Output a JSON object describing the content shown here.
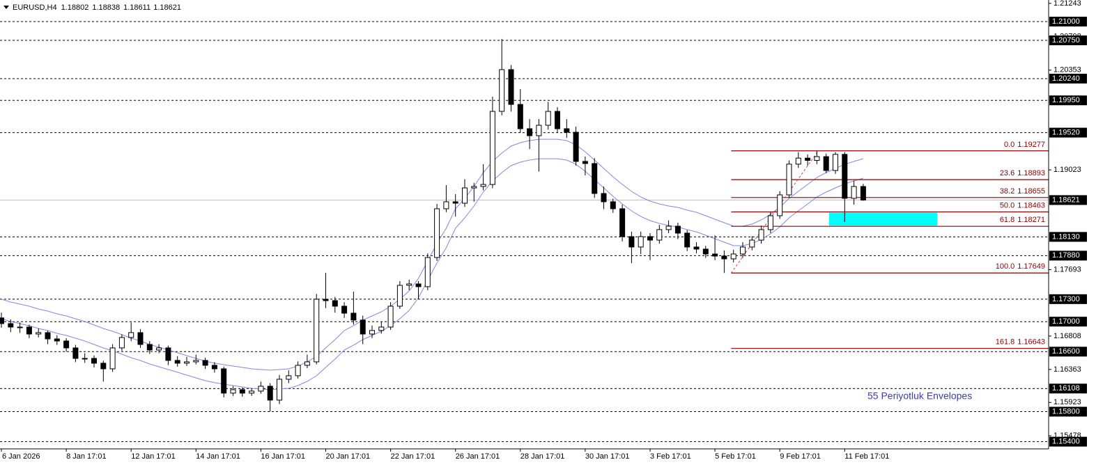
{
  "chart_data": {
    "type": "candlestick",
    "symbol": "EURUSD,H4",
    "annotation": "55 Periyotluk Envelopes",
    "ylim": [
      1.15304,
      1.21288
    ],
    "yticks": [
      1.21243,
      1.20798,
      1.20353,
      1.19023,
      1.17693,
      1.16808,
      1.16363,
      1.15923,
      1.15478
    ],
    "levels": [
      {
        "value": 1.21,
        "label": "1.21000"
      },
      {
        "value": 1.2075,
        "label": "1.20750"
      },
      {
        "value": 1.2024,
        "label": "1.20240"
      },
      {
        "value": 1.1995,
        "label": "1.19950"
      },
      {
        "value": 1.1952,
        "label": "1.19520"
      },
      {
        "value": 1.1813,
        "label": "1.18130"
      },
      {
        "value": 1.1788,
        "label": "1.17880"
      },
      {
        "value": 1.173,
        "label": "1.17300"
      },
      {
        "value": 1.17,
        "label": "1.17000"
      },
      {
        "value": 1.166,
        "label": "1.16600"
      },
      1.16108,
      {
        "value": 1.158,
        "label": "1.15800"
      },
      {
        "value": 1.154,
        "label": "1.15400"
      }
    ],
    "fibonacci": {
      "color": "#8b0000",
      "zone_color": "#00ffff",
      "levels": [
        {
          "ratio": "0.0",
          "price": 1.19277
        },
        {
          "ratio": "23.6",
          "price": 1.18893
        },
        {
          "ratio": "38.2",
          "price": 1.18655
        },
        {
          "ratio": "50.0",
          "price": 1.18463
        },
        {
          "ratio": "61.8",
          "price": 1.18271
        },
        {
          "ratio": "100.0",
          "price": 1.17649
        },
        {
          "ratio": "161.8",
          "price": 1.16643
        }
      ]
    },
    "categories": [
      "6 Jan 2026",
      null,
      null,
      null,
      null,
      null,
      null,
      "8 Jan 17:01",
      null,
      null,
      null,
      null,
      null,
      null,
      "12 Jan 17:01",
      null,
      null,
      null,
      null,
      null,
      null,
      "14 Jan 17:01",
      null,
      null,
      null,
      null,
      null,
      null,
      "16 Jan 17:01",
      null,
      null,
      null,
      null,
      null,
      null,
      "20 Jan 17:01",
      null,
      null,
      null,
      null,
      null,
      null,
      "22 Jan 17:01",
      null,
      null,
      null,
      null,
      null,
      null,
      "26 Jan 17:01",
      null,
      null,
      null,
      null,
      null,
      null,
      "28 Jan 17:01",
      null,
      null,
      null,
      null,
      null,
      null,
      "30 Jan 17:01",
      null,
      null,
      null,
      null,
      null,
      null,
      "3 Feb 17:01",
      null,
      null,
      null,
      null,
      null,
      null,
      "5 Feb 17:01",
      null,
      null,
      null,
      null,
      null,
      null,
      "9 Feb 17:01",
      null,
      null,
      null,
      null,
      null,
      null,
      "11 Feb 17:01",
      null,
      null
    ],
    "ohlc": [
      [
        1.1705,
        1.1712,
        1.1692,
        1.16974
      ],
      [
        1.16974,
        1.1703,
        1.1686,
        1.16928
      ],
      [
        1.16928,
        1.1699,
        1.1685,
        1.16928
      ],
      [
        1.16928,
        1.1696,
        1.1678,
        1.16835
      ],
      [
        1.16835,
        1.1691,
        1.1679,
        1.16854
      ],
      [
        1.16854,
        1.1688,
        1.167,
        1.1677
      ],
      [
        1.1677,
        1.1682,
        1.1669,
        1.16742
      ],
      [
        1.16742,
        1.1678,
        1.166,
        1.1665
      ],
      [
        1.1665,
        1.1669,
        1.1646,
        1.1651
      ],
      [
        1.1651,
        1.1658,
        1.1645,
        1.1651
      ],
      [
        1.1651,
        1.1655,
        1.1639,
        1.16446
      ],
      [
        1.16446,
        1.1648,
        1.162,
        1.16371
      ],
      [
        1.16371,
        1.167,
        1.1633,
        1.1665
      ],
      [
        1.1665,
        1.1683,
        1.1661,
        1.16789
      ],
      [
        1.16789,
        1.1699,
        1.1674,
        1.16854
      ],
      [
        1.16854,
        1.169,
        1.1665,
        1.16696
      ],
      [
        1.16696,
        1.1674,
        1.1657,
        1.16622
      ],
      [
        1.16622,
        1.167,
        1.1658,
        1.1665
      ],
      [
        1.1665,
        1.1668,
        1.1642,
        1.16483
      ],
      [
        1.16483,
        1.1654,
        1.164,
        1.16446
      ],
      [
        1.16446,
        1.1653,
        1.1641,
        1.16464
      ],
      [
        1.16464,
        1.1656,
        1.1643,
        1.16483
      ],
      [
        1.16483,
        1.1652,
        1.1637,
        1.16418
      ],
      [
        1.16418,
        1.1646,
        1.1632,
        1.16371
      ],
      [
        1.16371,
        1.164,
        1.1599,
        1.16047
      ],
      [
        1.16047,
        1.1614,
        1.1601,
        1.16093
      ],
      [
        1.16093,
        1.1612,
        1.16,
        1.16047
      ],
      [
        1.16047,
        1.1611,
        1.1601,
        1.16074
      ],
      [
        1.16074,
        1.162,
        1.1604,
        1.16139
      ],
      [
        1.16139,
        1.1618,
        1.158,
        1.15954
      ],
      [
        1.15954,
        1.1629,
        1.159,
        1.16232
      ],
      [
        1.16232,
        1.1635,
        1.1618,
        1.16279
      ],
      [
        1.16279,
        1.1647,
        1.1624,
        1.16418
      ],
      [
        1.16418,
        1.1656,
        1.1638,
        1.16464
      ],
      [
        1.16464,
        1.1737,
        1.1643,
        1.17299
      ],
      [
        1.17299,
        1.1765,
        1.1718,
        1.1728
      ],
      [
        1.1728,
        1.1733,
        1.1712,
        1.17206
      ],
      [
        1.17206,
        1.1726,
        1.1705,
        1.17113
      ],
      [
        1.17113,
        1.174,
        1.1696,
        1.17021
      ],
      [
        1.17021,
        1.1708,
        1.167,
        1.16835
      ],
      [
        1.16835,
        1.1695,
        1.1678,
        1.16882
      ],
      [
        1.16882,
        1.17,
        1.1684,
        1.16928
      ],
      [
        1.16928,
        1.1726,
        1.1689,
        1.17206
      ],
      [
        1.17206,
        1.1754,
        1.1717,
        1.17484
      ],
      [
        1.17484,
        1.1756,
        1.1742,
        1.17503
      ],
      [
        1.17503,
        1.1754,
        1.173,
        1.17466
      ],
      [
        1.17466,
        1.1791,
        1.1742,
        1.17855
      ],
      [
        1.17855,
        1.1857,
        1.1781,
        1.18505
      ],
      [
        1.18505,
        1.1882,
        1.1846,
        1.18598
      ],
      [
        1.18598,
        1.187,
        1.184,
        1.18579
      ],
      [
        1.18579,
        1.189,
        1.1853,
        1.18783
      ],
      [
        1.18783,
        1.1885,
        1.186,
        1.18802
      ],
      [
        1.18802,
        1.191,
        1.1875,
        1.18829
      ],
      [
        1.18829,
        1.2,
        1.1878,
        1.19803
      ],
      [
        1.19803,
        1.2077,
        1.1975,
        1.2036
      ],
      [
        1.2036,
        1.2042,
        1.198,
        1.19896
      ],
      [
        1.19896,
        1.201,
        1.1952,
        1.19572
      ],
      [
        1.19572,
        1.197,
        1.193,
        1.19479
      ],
      [
        1.19479,
        1.197,
        1.19,
        1.19618
      ],
      [
        1.19618,
        1.1993,
        1.1956,
        1.19803
      ],
      [
        1.19803,
        1.1986,
        1.1952,
        1.19572
      ],
      [
        1.19572,
        1.197,
        1.1945,
        1.19525
      ],
      [
        1.19525,
        1.196,
        1.1908,
        1.19136
      ],
      [
        1.19136,
        1.192,
        1.1895,
        1.19108
      ],
      [
        1.19108,
        1.1918,
        1.1865,
        1.18709
      ],
      [
        1.18709,
        1.188,
        1.185,
        1.18598
      ],
      [
        1.18598,
        1.1864,
        1.1845,
        1.18505
      ],
      [
        1.18505,
        1.1856,
        1.1807,
        1.18134
      ],
      [
        1.18134,
        1.182,
        1.1778,
        1.17995
      ],
      [
        1.17995,
        1.182,
        1.179,
        1.18134
      ],
      [
        1.18134,
        1.1818,
        1.1782,
        1.18087
      ],
      [
        1.18087,
        1.1829,
        1.1804,
        1.18227
      ],
      [
        1.18227,
        1.1835,
        1.1818,
        1.18273
      ],
      [
        1.18273,
        1.1832,
        1.181,
        1.1818
      ],
      [
        1.1818,
        1.1822,
        1.1794,
        1.17995
      ],
      [
        1.17995,
        1.1806,
        1.1791,
        1.17967
      ],
      [
        1.17967,
        1.1801,
        1.1785,
        1.17902
      ],
      [
        1.17902,
        1.1815,
        1.1782,
        1.17874
      ],
      [
        1.17874,
        1.1795,
        1.17649,
        1.17837
      ],
      [
        1.17837,
        1.1796,
        1.1779,
        1.17902
      ],
      [
        1.17902,
        1.1806,
        1.1785,
        1.17995
      ],
      [
        1.17995,
        1.1814,
        1.1795,
        1.18087
      ],
      [
        1.18087,
        1.1828,
        1.1804,
        1.18227
      ],
      [
        1.18227,
        1.1846,
        1.1818,
        1.18412
      ],
      [
        1.18412,
        1.1874,
        1.1837,
        1.1869
      ],
      [
        1.1869,
        1.1915,
        1.1865,
        1.191
      ],
      [
        1.191,
        1.1926,
        1.1905,
        1.1918
      ],
      [
        1.1918,
        1.1923,
        1.1908,
        1.1915
      ],
      [
        1.1915,
        1.19277,
        1.191,
        1.192
      ],
      [
        1.192,
        1.1924,
        1.1898,
        1.19015
      ],
      [
        1.19015,
        1.1926,
        1.1897,
        1.1923
      ],
      [
        1.1923,
        1.1926,
        1.1833,
        1.18644
      ],
      [
        1.18644,
        1.1888,
        1.1856,
        1.18802
      ],
      [
        1.18802,
        1.18838,
        1.18611,
        1.18621
      ]
    ],
    "envelopes": [
      {
        "color": "#8585e6",
        "values": [
          1.17299,
          1.17262,
          1.17234,
          1.17206,
          1.17169,
          1.17141,
          1.17104,
          1.17076,
          1.17039,
          1.17002,
          1.16956,
          1.16909,
          1.16872,
          1.16826,
          1.16779,
          1.16742,
          1.16696,
          1.16659,
          1.16622,
          1.16585,
          1.16547,
          1.1651,
          1.16473,
          1.16446,
          1.16427,
          1.16408,
          1.1639,
          1.16371,
          1.16362,
          1.16353,
          1.16362,
          1.16371,
          1.16408,
          1.16464,
          1.16538,
          1.1665,
          1.16761,
          1.16881,
          1.16946,
          1.17021,
          1.17076,
          1.17132,
          1.17206,
          1.17299,
          1.1741,
          1.17577,
          1.17809,
          1.18041,
          1.18245,
          1.18505,
          1.18644,
          1.18802,
          1.18987,
          1.19136,
          1.19247,
          1.1934,
          1.19386,
          1.19414,
          1.19432,
          1.19432,
          1.19432,
          1.19414,
          1.19358,
          1.19265,
          1.19154,
          1.19043,
          1.18931,
          1.18829,
          1.18737,
          1.18662,
          1.18607,
          1.1857,
          1.18542,
          1.18523,
          1.18486,
          1.18458,
          1.18412,
          1.18366,
          1.18319,
          1.18273,
          1.18273,
          1.18301,
          1.18356,
          1.18431,
          1.18523,
          1.18644,
          1.18737,
          1.18829,
          1.18922,
          1.18987,
          1.19043,
          1.19098,
          1.19136,
          1.19173
        ]
      },
      {
        "color": "#8585e6",
        "values": [
          1.17039,
          1.17002,
          1.16974,
          1.16946,
          1.16909,
          1.16881,
          1.16844,
          1.16816,
          1.16779,
          1.16742,
          1.16696,
          1.16649,
          1.16612,
          1.16566,
          1.16519,
          1.16482,
          1.16436,
          1.16399,
          1.16362,
          1.16325,
          1.16287,
          1.1625,
          1.16213,
          1.16186,
          1.16167,
          1.16148,
          1.1613,
          1.16111,
          1.16102,
          1.16093,
          1.16102,
          1.16111,
          1.16148,
          1.16204,
          1.16278,
          1.1639,
          1.16501,
          1.16621,
          1.16686,
          1.16761,
          1.16816,
          1.16872,
          1.16946,
          1.17039,
          1.1715,
          1.17317,
          1.17549,
          1.17781,
          1.17985,
          1.18245,
          1.18384,
          1.18542,
          1.18727,
          1.18876,
          1.18987,
          1.1908,
          1.19126,
          1.19154,
          1.19172,
          1.19172,
          1.19172,
          1.19154,
          1.19098,
          1.19005,
          1.18894,
          1.18783,
          1.18671,
          1.18569,
          1.18477,
          1.18402,
          1.18347,
          1.1831,
          1.18282,
          1.18263,
          1.18226,
          1.18198,
          1.18152,
          1.18106,
          1.18059,
          1.18013,
          1.18013,
          1.18041,
          1.18096,
          1.18171,
          1.18263,
          1.18384,
          1.18477,
          1.18569,
          1.18662,
          1.18727,
          1.18783,
          1.18838,
          1.18876,
          1.18913
        ]
      }
    ]
  }
}
